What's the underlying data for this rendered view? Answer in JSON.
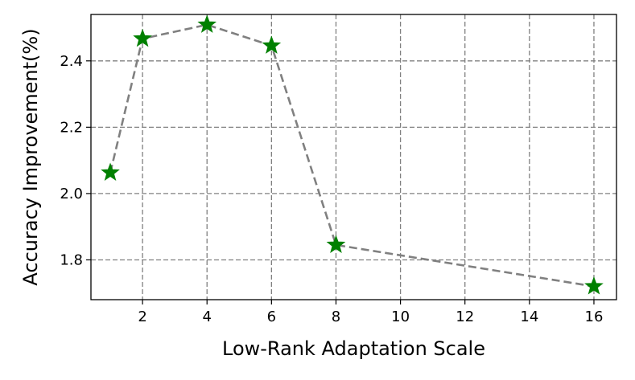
{
  "chart_data": {
    "type": "line",
    "title": "",
    "xlabel": "Low-Rank Adaptation Scale",
    "ylabel": "Accuracy Improvement(%)",
    "xlim": [
      0.4,
      16.7
    ],
    "ylim": [
      1.68,
      2.54
    ],
    "xticks": [
      2,
      4,
      6,
      8,
      10,
      12,
      14,
      16
    ],
    "yticks": [
      1.8,
      2.0,
      2.2,
      2.4
    ],
    "grid": true,
    "legend": "none",
    "series": [
      {
        "x": [
          1,
          2,
          4,
          6,
          8,
          16
        ],
        "y": [
          2.063,
          2.467,
          2.509,
          2.446,
          1.845,
          1.72
        ],
        "line_color": "#808080",
        "line_style": "dashed",
        "marker": "star",
        "marker_color": "#008000"
      }
    ]
  }
}
